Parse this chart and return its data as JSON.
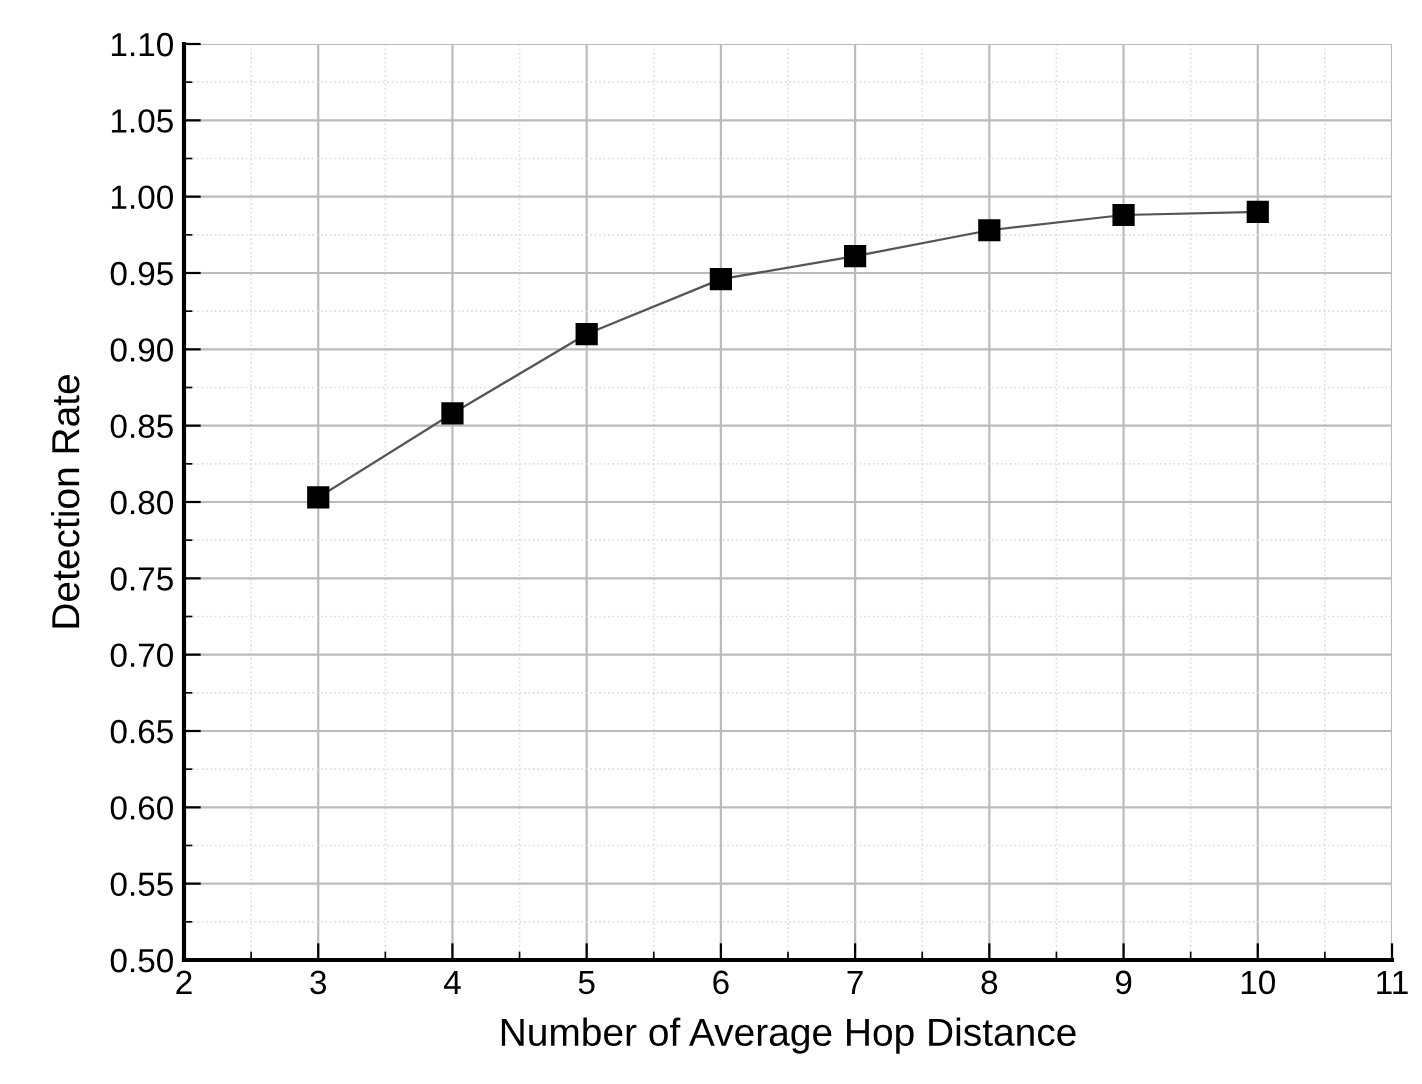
{
  "chart_data": {
    "type": "line",
    "xlabel": "Number of Average Hop Distance",
    "ylabel": "Detection Rate",
    "x": [
      3,
      4,
      5,
      6,
      7,
      8,
      9,
      10
    ],
    "series": [
      {
        "color": "#000000",
        "values": [
          0.803,
          0.858,
          0.91,
          0.946,
          0.961,
          0.978,
          0.988,
          0.99
        ]
      }
    ],
    "marker": "square",
    "line_style": "solid",
    "grid": true,
    "xlim": [
      2,
      11
    ],
    "xticks": [
      2,
      3,
      4,
      5,
      6,
      7,
      8,
      9,
      10,
      11
    ],
    "ylim": [
      0.5,
      1.1
    ],
    "yticks": [
      {
        "value": 0.5,
        "label": "0.50"
      },
      {
        "value": 0.55,
        "label": "0.55"
      },
      {
        "value": 0.6,
        "label": "0.60"
      },
      {
        "value": 0.65,
        "label": "0.65"
      },
      {
        "value": 0.7,
        "label": "0.70"
      },
      {
        "value": 0.75,
        "label": "0.75"
      },
      {
        "value": 0.8,
        "label": "0.80"
      },
      {
        "value": 0.85,
        "label": "0.85"
      },
      {
        "value": 0.9,
        "label": "0.90"
      },
      {
        "value": 0.95,
        "label": "0.95"
      },
      {
        "value": 1.0,
        "label": "1.00"
      },
      {
        "value": 1.05,
        "label": "1.05"
      },
      {
        "value": 1.1,
        "label": "1.10"
      }
    ]
  }
}
